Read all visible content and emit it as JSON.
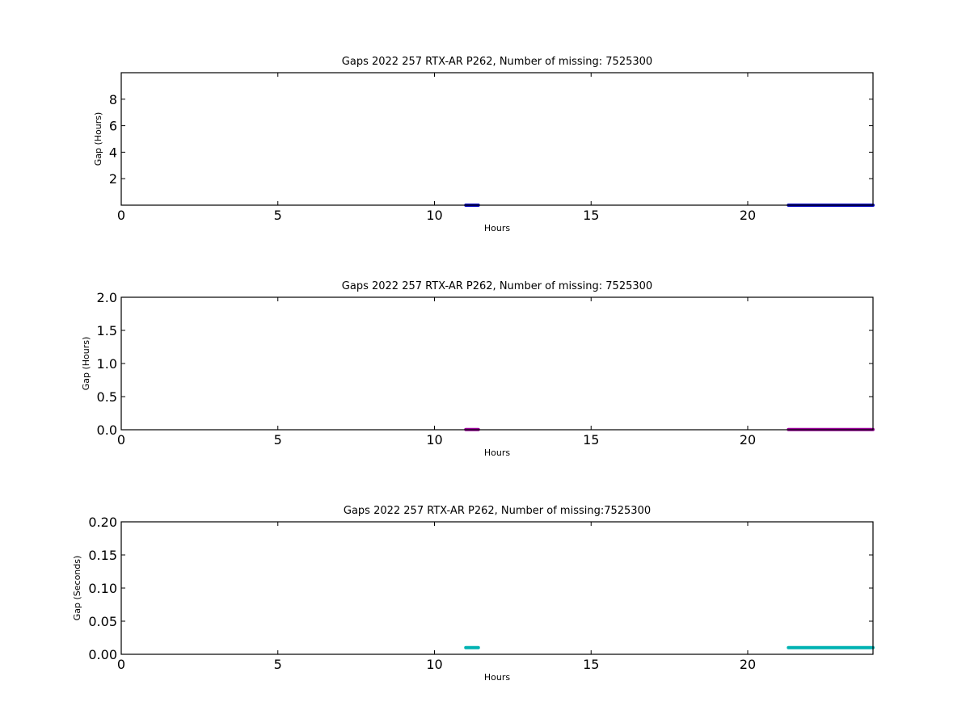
{
  "chart_data": [
    {
      "type": "scatter",
      "title": "Gaps 2022 257 RTX-AR  P262, Number of missing: 7525300",
      "xlabel": "Hours",
      "ylabel": "Gap (Hours)",
      "xlim": [
        0,
        24
      ],
      "ylim": [
        0,
        10
      ],
      "xticks": [
        "0",
        "5",
        "10",
        "15",
        "20"
      ],
      "xtick_values": [
        0,
        5,
        10,
        15,
        20
      ],
      "yticks": [
        "2",
        "4",
        "6",
        "8"
      ],
      "ytick_values": [
        2,
        4,
        6,
        8
      ],
      "color": "#0000bf",
      "grid": false,
      "segments": [
        {
          "x_start": 11.0,
          "x_end": 11.4,
          "y": 0.0028
        },
        {
          "x_start": 21.3,
          "x_end": 24.0,
          "y": 0.0028
        }
      ]
    },
    {
      "type": "scatter",
      "title": "Gaps 2022 257 RTX-AR  P262, Number of missing: 7525300",
      "xlabel": "Hours",
      "ylabel": "Gap (Hours)",
      "xlim": [
        0,
        24
      ],
      "ylim": [
        0,
        2
      ],
      "xticks": [
        "0",
        "5",
        "10",
        "15",
        "20"
      ],
      "xtick_values": [
        0,
        5,
        10,
        15,
        20
      ],
      "yticks": [
        "0.0",
        "0.5",
        "1.0",
        "1.5",
        "2.0"
      ],
      "ytick_values": [
        0,
        0.5,
        1.0,
        1.5,
        2.0
      ],
      "color": "#990099",
      "grid": false,
      "segments": [
        {
          "x_start": 11.0,
          "x_end": 11.4,
          "y": 0.0028
        },
        {
          "x_start": 21.3,
          "x_end": 24.0,
          "y": 0.0028
        }
      ]
    },
    {
      "type": "scatter",
      "title": "Gaps 2022 257 RTX-AR  P262, Number of missing:7525300",
      "xlabel": "Hours",
      "ylabel": "Gap (Seconds)",
      "xlim": [
        0,
        24
      ],
      "ylim": [
        0,
        0.2
      ],
      "xticks": [
        "0",
        "5",
        "10",
        "15",
        "20"
      ],
      "xtick_values": [
        0,
        5,
        10,
        15,
        20
      ],
      "yticks": [
        "0.00",
        "0.05",
        "0.10",
        "0.15",
        "0.20"
      ],
      "ytick_values": [
        0,
        0.05,
        0.1,
        0.15,
        0.2
      ],
      "color": "#00b2b2",
      "grid": false,
      "segments": [
        {
          "x_start": 11.0,
          "x_end": 11.4,
          "y": 0.01
        },
        {
          "x_start": 21.3,
          "x_end": 24.0,
          "y": 0.01
        }
      ]
    }
  ]
}
